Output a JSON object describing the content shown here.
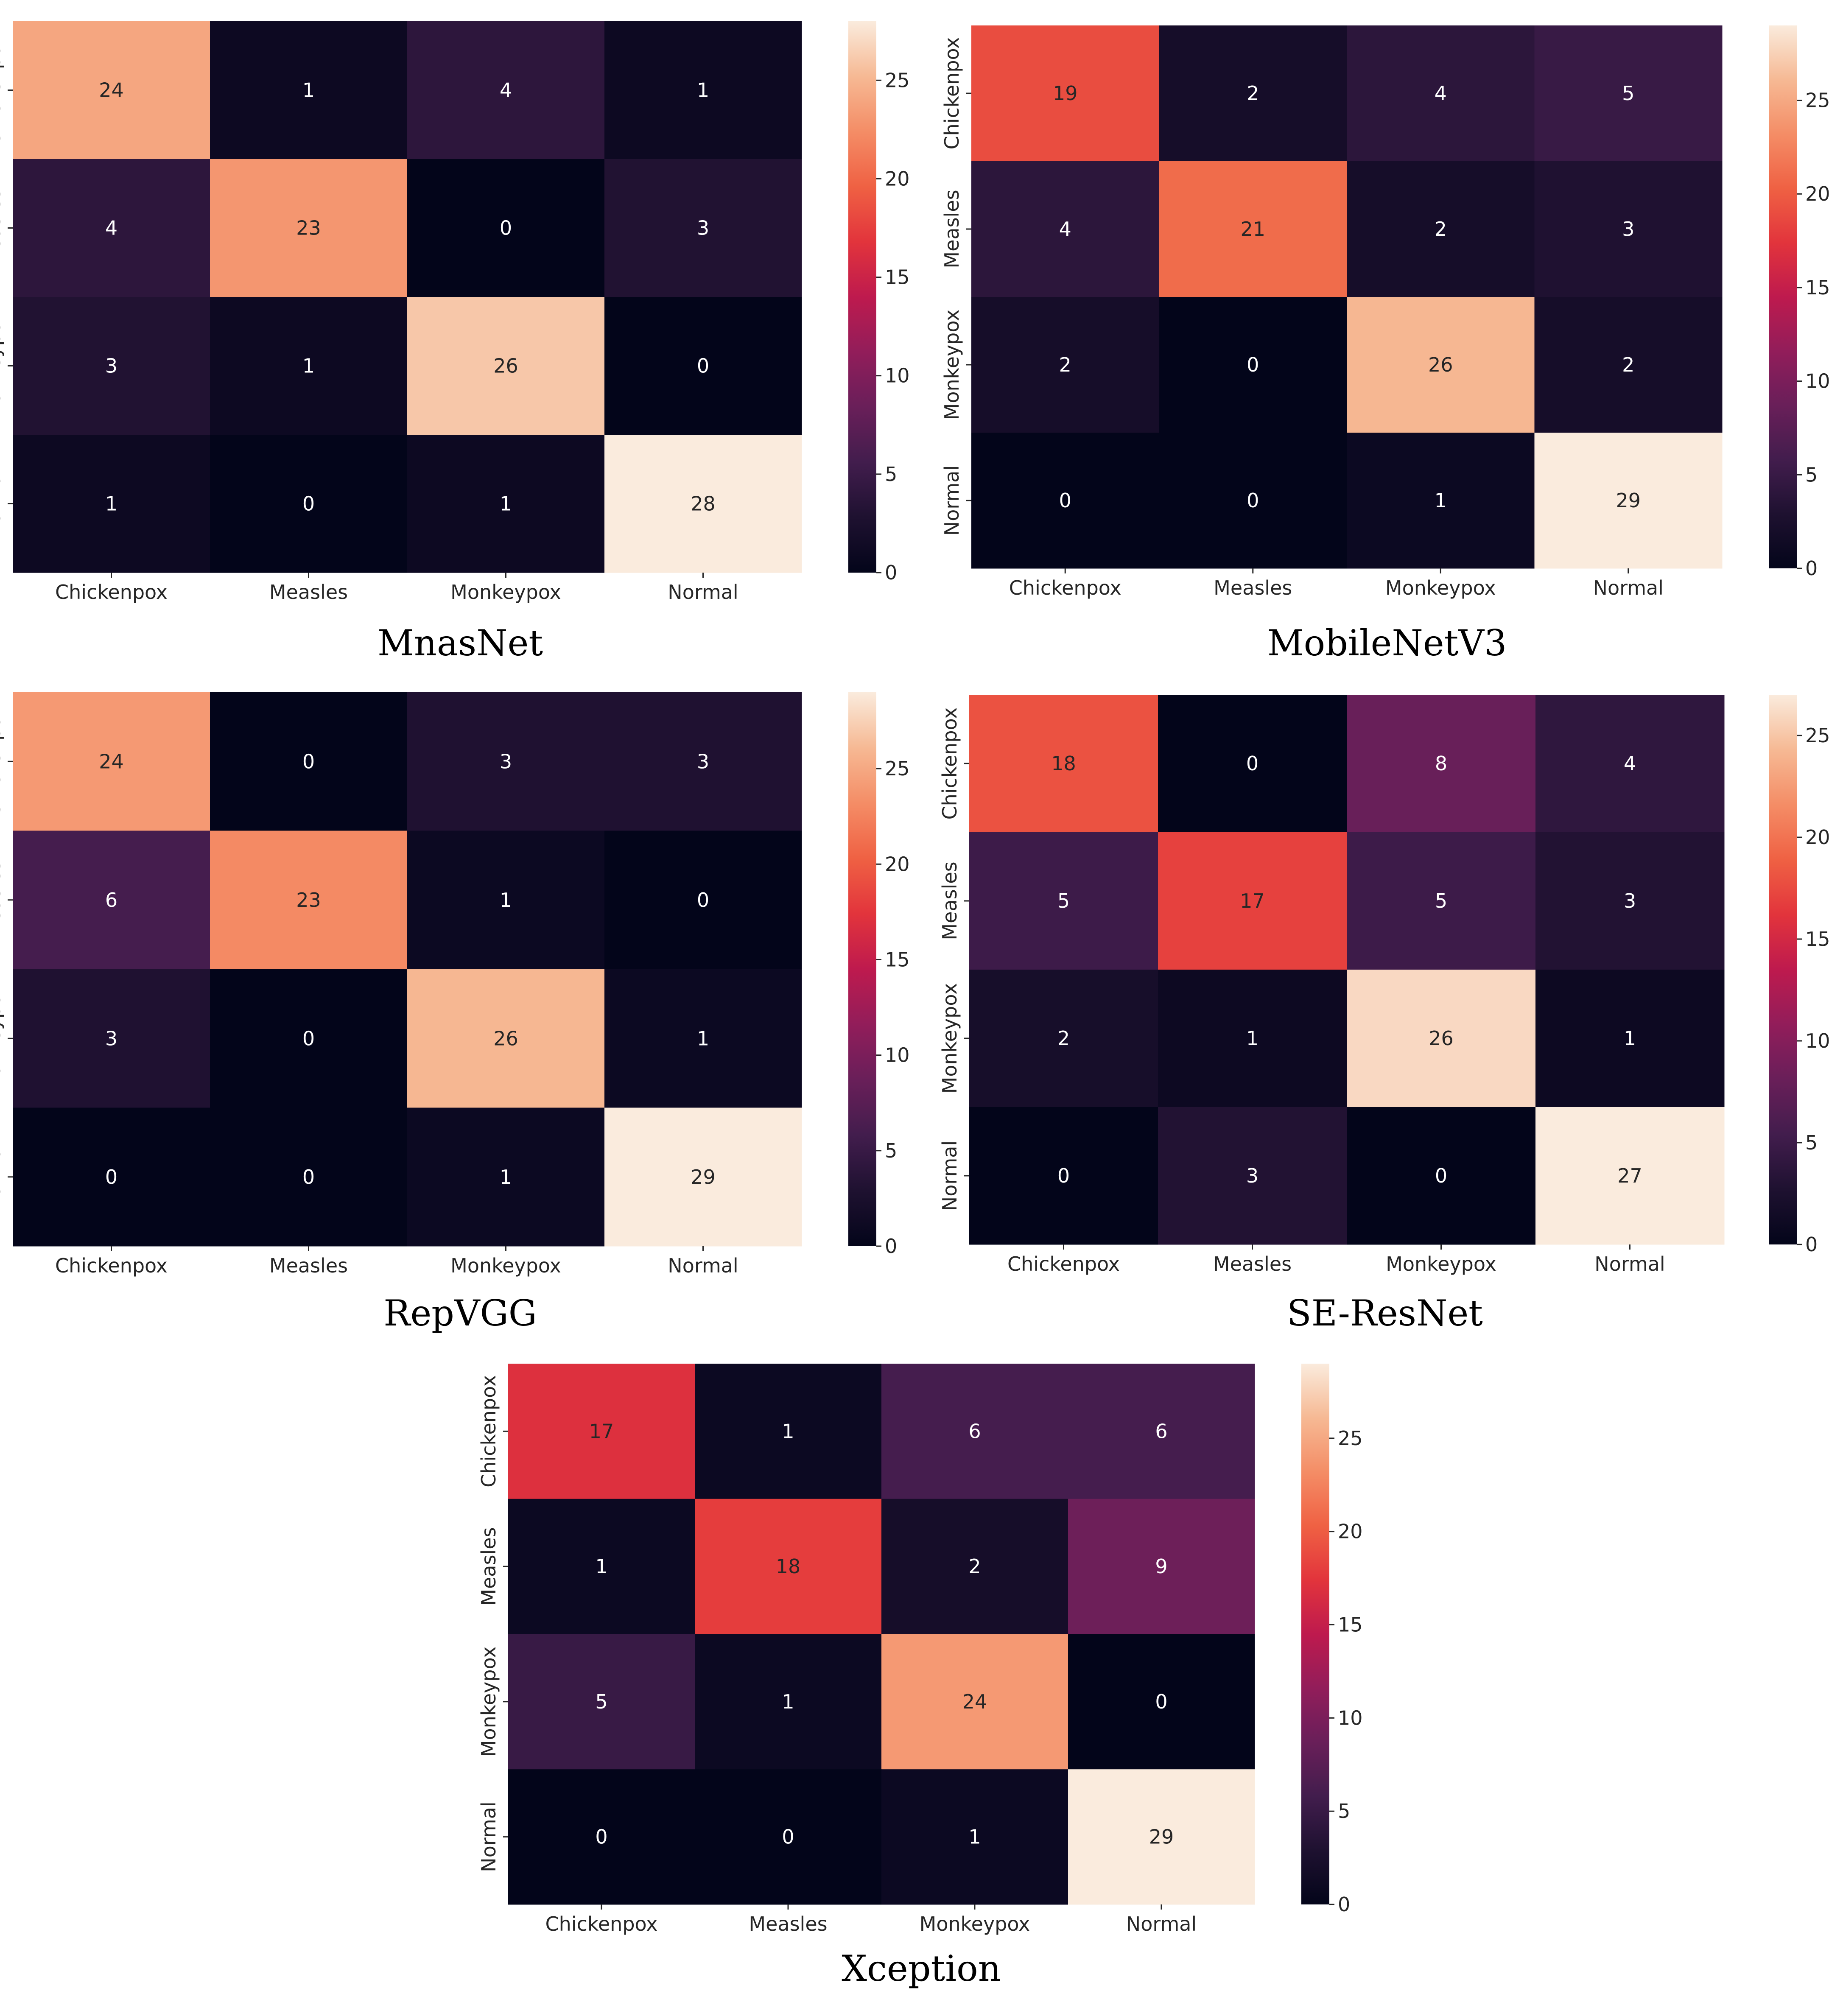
{
  "chart_data": [
    {
      "type": "heatmap",
      "title": "MnasNet",
      "xlabel": "",
      "ylabel": "",
      "x_categories": [
        "Chickenpox",
        "Measles",
        "Monkeypox",
        "Normal"
      ],
      "y_categories": [
        "Chickenpox",
        "Measles",
        "Monkeypox",
        "Normal"
      ],
      "values": [
        [
          24,
          1,
          4,
          1
        ],
        [
          4,
          23,
          0,
          3
        ],
        [
          3,
          1,
          26,
          0
        ],
        [
          1,
          0,
          1,
          28
        ]
      ],
      "colorbar": {
        "range": [
          0,
          28
        ],
        "ticks": [
          0,
          5,
          10,
          15,
          20,
          25
        ]
      },
      "colormap": "rocket"
    },
    {
      "type": "heatmap",
      "title": "MobileNetV3",
      "xlabel": "",
      "ylabel": "",
      "x_categories": [
        "Chickenpox",
        "Measles",
        "Monkeypox",
        "Normal"
      ],
      "y_categories": [
        "Chickenpox",
        "Measles",
        "Monkeypox",
        "Normal"
      ],
      "values": [
        [
          19,
          2,
          4,
          5
        ],
        [
          4,
          21,
          2,
          3
        ],
        [
          2,
          0,
          26,
          2
        ],
        [
          0,
          0,
          1,
          29
        ]
      ],
      "colorbar": {
        "range": [
          0,
          29
        ],
        "ticks": [
          0,
          5,
          10,
          15,
          20,
          25
        ]
      },
      "colormap": "rocket"
    },
    {
      "type": "heatmap",
      "title": "RepVGG",
      "xlabel": "",
      "ylabel": "",
      "x_categories": [
        "Chickenpox",
        "Measles",
        "Monkeypox",
        "Normal"
      ],
      "y_categories": [
        "Chickenpox",
        "Measles",
        "Monkeypox",
        "Normal"
      ],
      "values": [
        [
          24,
          0,
          3,
          3
        ],
        [
          6,
          23,
          1,
          0
        ],
        [
          3,
          0,
          26,
          1
        ],
        [
          0,
          0,
          1,
          29
        ]
      ],
      "colorbar": {
        "range": [
          0,
          29
        ],
        "ticks": [
          0,
          5,
          10,
          15,
          20,
          25
        ]
      },
      "colormap": "rocket"
    },
    {
      "type": "heatmap",
      "title": "SE-ResNet",
      "xlabel": "",
      "ylabel": "",
      "x_categories": [
        "Chickenpox",
        "Measles",
        "Monkeypox",
        "Normal"
      ],
      "y_categories": [
        "Chickenpox",
        "Measles",
        "Monkeypox",
        "Normal"
      ],
      "values": [
        [
          18,
          0,
          8,
          4
        ],
        [
          5,
          17,
          5,
          3
        ],
        [
          2,
          1,
          26,
          1
        ],
        [
          0,
          3,
          0,
          27
        ]
      ],
      "colorbar": {
        "range": [
          0,
          27
        ],
        "ticks": [
          0,
          5,
          10,
          15,
          20,
          25
        ]
      },
      "colormap": "rocket"
    },
    {
      "type": "heatmap",
      "title": "Xception",
      "xlabel": "",
      "ylabel": "",
      "x_categories": [
        "Chickenpox",
        "Measles",
        "Monkeypox",
        "Normal"
      ],
      "y_categories": [
        "Chickenpox",
        "Measles",
        "Monkeypox",
        "Normal"
      ],
      "values": [
        [
          17,
          1,
          6,
          6
        ],
        [
          1,
          18,
          2,
          9
        ],
        [
          5,
          1,
          24,
          0
        ],
        [
          0,
          0,
          1,
          29
        ]
      ],
      "colorbar": {
        "range": [
          0,
          29
        ],
        "ticks": [
          0,
          5,
          10,
          15,
          20,
          25
        ]
      },
      "colormap": "rocket"
    }
  ]
}
